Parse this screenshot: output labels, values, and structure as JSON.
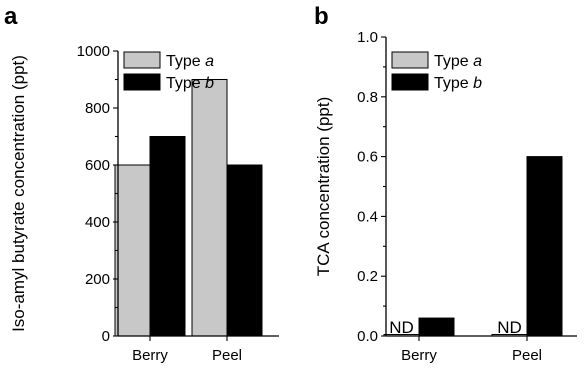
{
  "chart_data": [
    {
      "type": "bar",
      "panel": "a",
      "categories": [
        "Berry",
        "Peel"
      ],
      "series": [
        {
          "name": "Type a",
          "legend_prefix": "Type ",
          "legend_italic": "a",
          "color": "#c8c8c8",
          "values": [
            600,
            900
          ]
        },
        {
          "name": "Type b",
          "legend_prefix": "Type ",
          "legend_italic": "b",
          "color": "#000000",
          "values": [
            700,
            600
          ]
        }
      ],
      "ylabel": "Iso-amyl butyrate concentration (ppt)",
      "ylim": [
        0,
        1000
      ],
      "yticks": [
        0,
        200,
        400,
        600,
        800,
        1000
      ],
      "ytick_labels": [
        "0",
        "200",
        "400",
        "600",
        "800",
        "1000"
      ],
      "legend_position": "top-left",
      "annotations": []
    },
    {
      "type": "bar",
      "panel": "b",
      "categories": [
        "Berry",
        "Peel"
      ],
      "series": [
        {
          "name": "Type a",
          "legend_prefix": "Type ",
          "legend_italic": "a",
          "color": "#c8c8c8",
          "values": [
            0.005,
            0.005
          ]
        },
        {
          "name": "Type b",
          "legend_prefix": "Type ",
          "legend_italic": "b",
          "color": "#000000",
          "values": [
            0.06,
            0.6
          ]
        }
      ],
      "ylabel": "TCA concentration (ppt)",
      "ylim": [
        0,
        1.0
      ],
      "yticks": [
        0,
        0.2,
        0.4,
        0.6,
        0.8,
        1.0
      ],
      "ytick_labels": [
        "0.0",
        "0.2",
        "0.4",
        "0.6",
        "0.8",
        "1.0"
      ],
      "legend_position": "top-left",
      "annotations": [
        {
          "text": "ND",
          "category": 0
        },
        {
          "text": "ND",
          "category": 1
        }
      ]
    }
  ]
}
